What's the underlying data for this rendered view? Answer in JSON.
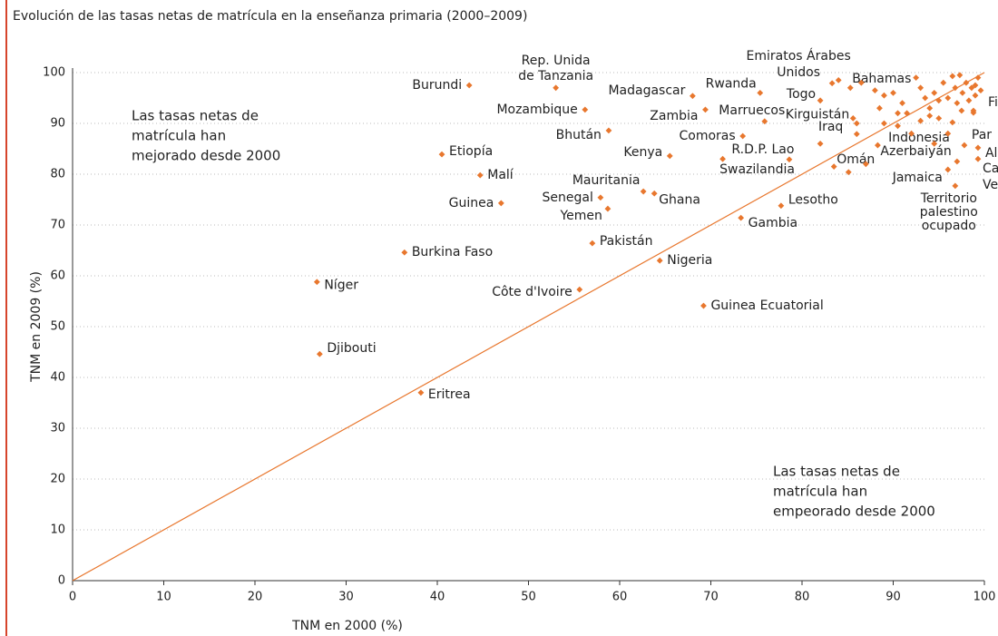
{
  "chart_data": {
    "type": "scatter",
    "title": "Evolución de las tasas netas de matrícula en la enseñanza primaria (2000–2009)",
    "xlabel": "TNM en 2000 (%)",
    "ylabel": "TNM en 2009 (%)",
    "annotations": [
      [
        "Las tasas netas de",
        "matrícula han",
        "mejorado desde 2000"
      ],
      [
        "Las tasas netas de",
        "matrícula han",
        "empeorado desde 2000"
      ]
    ],
    "color": "#e8772e",
    "reference_line": true,
    "grid": true,
    "xlim": [
      0,
      100
    ],
    "ylim": [
      0,
      100
    ],
    "xticks": [
      0,
      10,
      20,
      30,
      40,
      50,
      60,
      70,
      80,
      90,
      100
    ],
    "yticks": [
      0,
      10,
      20,
      30,
      40,
      50,
      60,
      70,
      80,
      90,
      100
    ],
    "labels": [
      "Burundi",
      [
        "Rep. Unida",
        "de Tanzania"
      ],
      "Madagascar",
      "Rwanda",
      [
        "Emiratos Árabes",
        "Unidos"
      ],
      "Bahamas",
      "Togo",
      "Mozambique",
      "Bhután",
      "Zambia",
      "Marruecos",
      "Kirguistán",
      "Iraq",
      "Indonesia",
      "Fi",
      "Comoras",
      "Kenya",
      "R.D.P. Lao",
      "Swazilandia",
      "Omán",
      "Azerbaiyán",
      "Jamaica",
      "Par",
      "Al",
      [
        "Ca",
        "Ve"
      ],
      [
        "Territorio",
        "palestino",
        "ocupado"
      ],
      "Etiopía",
      "Malí",
      "Guinea",
      "Mauritania",
      "Senegal",
      "Ghana",
      "Yemen",
      "Lesotho",
      "Gambia",
      "Pakistán",
      "Burkina Faso",
      "Nigeria",
      "Níger",
      "Côte d'Ivoire",
      "Guinea Ecuatorial",
      "Djibouti",
      "Eritrea",
      null,
      null,
      null,
      null,
      null,
      null,
      null,
      null,
      null,
      null,
      null,
      null,
      null,
      null,
      null,
      null,
      null,
      null,
      null,
      null,
      null,
      null,
      null,
      null,
      null,
      null,
      null,
      null,
      null,
      null,
      null,
      null,
      null,
      null,
      null,
      null,
      null,
      null,
      null,
      null,
      null,
      null,
      null,
      null
    ],
    "x": [
      43.5,
      53,
      68,
      75.4,
      83.3,
      85.3,
      82,
      56.2,
      58.8,
      69.4,
      75.9,
      85.6,
      86,
      96.5,
      98.8,
      73.5,
      65.5,
      78.6,
      71.3,
      85.1,
      88.3,
      96,
      97.8,
      99.3,
      99.3,
      96.8,
      40.5,
      44.7,
      47,
      62.6,
      57.9,
      63.8,
      58.7,
      77.7,
      73.3,
      57,
      36.4,
      64.4,
      26.8,
      55.6,
      69.2,
      27.1,
      38.2,
      84,
      86.5,
      88,
      89,
      90,
      91,
      92.5,
      93,
      93.5,
      94,
      94.5,
      95,
      95.5,
      96,
      96.5,
      96.8,
      97,
      97.3,
      97.6,
      98,
      98.3,
      98.6,
      99,
      99.3,
      99.6,
      95,
      93,
      91.5,
      90.5,
      89,
      92,
      94,
      96,
      97.5,
      82,
      83.5,
      87,
      90.5,
      94.5,
      97,
      99,
      98.8,
      86,
      88.5
    ],
    "y": [
      97.5,
      97,
      95.4,
      96,
      97.9,
      97,
      94.5,
      92.7,
      88.6,
      92.7,
      90.4,
      91,
      87.9,
      90.2,
      92.1,
      87.5,
      83.6,
      82.9,
      83,
      80.4,
      85.7,
      80.9,
      85.7,
      85.2,
      83,
      77.7,
      83.9,
      79.8,
      74.3,
      76.6,
      75.4,
      76.2,
      73.2,
      73.8,
      71.4,
      66.4,
      64.6,
      63,
      58.8,
      57.3,
      54.1,
      44.6,
      37,
      98.5,
      98,
      96.5,
      95.5,
      96,
      94,
      99,
      97,
      95,
      93,
      96,
      94.5,
      98,
      95,
      99.3,
      97,
      94,
      99.5,
      96,
      98,
      94.5,
      97,
      95.5,
      99,
      96.5,
      91,
      90.5,
      92,
      89.5,
      90,
      88,
      91.5,
      88,
      92.5,
      86,
      81.5,
      82,
      92,
      86,
      82.5,
      97.5,
      92.5,
      90,
      93
    ]
  }
}
